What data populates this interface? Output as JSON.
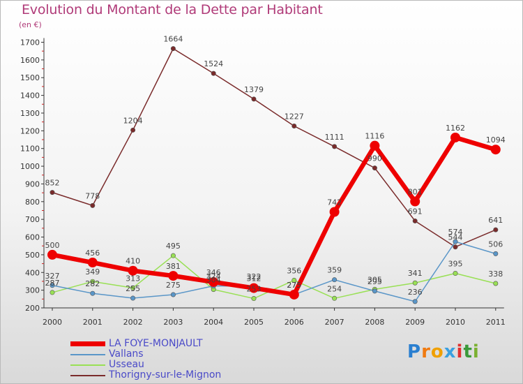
{
  "header": {
    "title": "Evolution du Montant de la Dette par Habitant",
    "subtitle": "(en €)"
  },
  "logo": {
    "letters": [
      "P",
      "r",
      "o",
      "x",
      "i",
      "t",
      "i"
    ],
    "colors": [
      "#2a7fd0",
      "#f07a10",
      "#f0a000",
      "#3aa0e0",
      "#e03030",
      "#3a9a3a",
      "#7ab030"
    ]
  },
  "chart_data": {
    "type": "line",
    "title": "Evolution du Montant de la Dette par Habitant",
    "subtitle": "(en €)",
    "ylim": [
      200,
      1700
    ],
    "yticks": [
      200,
      300,
      400,
      500,
      600,
      700,
      800,
      900,
      1000,
      1100,
      1200,
      1300,
      1400,
      1500,
      1600,
      1700
    ],
    "categories": [
      "2000",
      "2001",
      "2002",
      "2003",
      "2004",
      "2005",
      "2006",
      "2007",
      "2008",
      "2009",
      "2010",
      "2011"
    ],
    "grid": false,
    "legend_position": "bottom-left",
    "series": [
      {
        "name": "LA FOYE-MONJAULT",
        "color": "#ee0000",
        "values": [
          500,
          456,
          410,
          381,
          346,
          312,
          275,
          742,
          1116,
          801,
          1162,
          1094
        ],
        "labels": [
          "500",
          "456",
          "410",
          "381",
          "346",
          "312",
          "275",
          "742",
          "1116",
          "801",
          "1162",
          "1094"
        ]
      },
      {
        "name": "Vallans",
        "color": "#5a96c8",
        "values": [
          327,
          282,
          255,
          275,
          324,
          322,
          275,
          359,
          295,
          236,
          574,
          506
        ],
        "labels": [
          "327",
          "282",
          "255",
          "275",
          "324",
          "322",
          "275",
          "359",
          "295",
          "236",
          "574",
          "506"
        ]
      },
      {
        "name": "Usseau",
        "color": "#99e055",
        "values": [
          287,
          349,
          313,
          495,
          304,
          253,
          356,
          254,
          305,
          341,
          395,
          338
        ],
        "labels": [
          "287",
          "349",
          "313",
          "495",
          "304",
          "253",
          "356",
          "254",
          "305",
          "341",
          "395",
          "338"
        ]
      },
      {
        "name": "Thorigny-sur-le-Mignon",
        "color": "#7a2b2b",
        "values": [
          852,
          778,
          1204,
          1664,
          1524,
          1379,
          1227,
          1111,
          990,
          691,
          544,
          641
        ],
        "labels": [
          "852",
          "778",
          "1204",
          "1664",
          "1524",
          "1379",
          "1227",
          "1111",
          "990",
          "691",
          "544",
          "641"
        ]
      }
    ]
  }
}
